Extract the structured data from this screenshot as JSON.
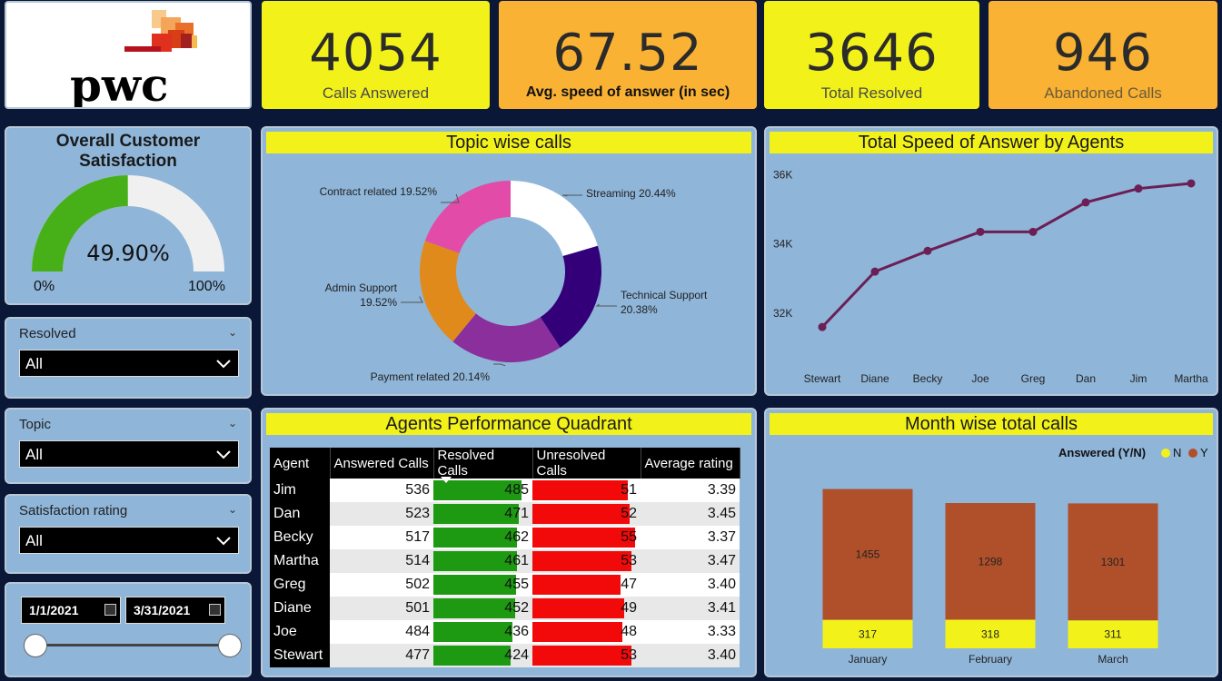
{
  "logo": {
    "text": "pwc"
  },
  "kpis": [
    {
      "value": "4054",
      "label": "Calls Answered",
      "color": "#f2f21a"
    },
    {
      "value": "67.52",
      "label": "Avg. speed of answer (in sec)",
      "color": "#f9b233"
    },
    {
      "value": "3646",
      "label": "Total Resolved",
      "color": "#f2f21a"
    },
    {
      "value": "946",
      "label": "Abandoned Calls",
      "color": "#f9b233"
    }
  ],
  "gauge": {
    "title_line1": "Overall Customer",
    "title_line2": "Satisfaction",
    "value_label": "49.90%",
    "value": 0.499,
    "min_label": "0%",
    "max_label": "100%",
    "fill_color": "#47b019",
    "track_color": "#f0f0f0"
  },
  "slicers": {
    "resolved": {
      "label": "Resolved",
      "value": "All"
    },
    "topic": {
      "label": "Topic",
      "value": "All"
    },
    "satisfaction": {
      "label": "Satisfaction rating",
      "value": "All"
    },
    "date": {
      "start": "1/1/2021",
      "end": "3/31/2021"
    }
  },
  "chart_data": [
    {
      "type": "pie",
      "title": "Topic wise calls",
      "donut": true,
      "slices": [
        {
          "label": "Streaming 20.44%",
          "name": "Streaming",
          "value": 20.44,
          "color": "#ffffff"
        },
        {
          "label": "Technical Support 20.38%",
          "name": "Technical Support",
          "value": 20.38,
          "color": "#33007a"
        },
        {
          "label": "Payment related 20.14%",
          "name": "Payment related",
          "value": 20.14,
          "color": "#8a2f9b"
        },
        {
          "label": "Admin Support 19.52%",
          "name": "Admin Support",
          "value": 19.52,
          "color": "#e08a1c"
        },
        {
          "label": "Contract related 19.52%",
          "name": "Contract related",
          "value": 19.52,
          "color": "#e24ba7"
        }
      ]
    },
    {
      "type": "line",
      "title": "Total Speed of Answer by Agents",
      "categories": [
        "Stewart",
        "Diane",
        "Becky",
        "Joe",
        "Greg",
        "Dan",
        "Jim",
        "Martha"
      ],
      "values": [
        31600,
        33200,
        33800,
        34350,
        34350,
        35200,
        35600,
        35750
      ],
      "ylim": [
        31000,
        36300
      ],
      "yticks": [
        32000,
        34000,
        36000
      ],
      "ytick_labels": [
        "32K",
        "34K",
        "36K"
      ],
      "color": "#6b1f55"
    },
    {
      "type": "bar",
      "title": "Month wise total calls",
      "legend_title": "Answered (Y/N)",
      "legend": [
        {
          "name": "N",
          "color": "#f2f21a"
        },
        {
          "name": "Y",
          "color": "#b0502a"
        }
      ],
      "categories": [
        "January",
        "February",
        "March"
      ],
      "series": [
        {
          "name": "N",
          "values": [
            317,
            318,
            311
          ],
          "labels": [
            "317",
            "318",
            "311"
          ],
          "color": "#f2f21a"
        },
        {
          "name": "Y",
          "values": [
            1455,
            1298,
            1301
          ],
          "labels": [
            "1455",
            "1298",
            "1301"
          ],
          "color": "#b0502a"
        }
      ],
      "ylim": [
        0,
        2000
      ]
    }
  ],
  "performance": {
    "title": "Agents Performance Quadrant",
    "headers": [
      "Agent",
      "Answered Calls",
      "Resolved Calls",
      "Unresolved Calls",
      "Average rating"
    ],
    "rows": [
      {
        "agent": "Jim",
        "answered": "536",
        "resolved": "485",
        "unresolved": "51",
        "rating": "3.39"
      },
      {
        "agent": "Dan",
        "answered": "523",
        "resolved": "471",
        "unresolved": "52",
        "rating": "3.45"
      },
      {
        "agent": "Becky",
        "answered": "517",
        "resolved": "462",
        "unresolved": "55",
        "rating": "3.37"
      },
      {
        "agent": "Martha",
        "answered": "514",
        "resolved": "461",
        "unresolved": "53",
        "rating": "3.47"
      },
      {
        "agent": "Greg",
        "answered": "502",
        "resolved": "455",
        "unresolved": "47",
        "rating": "3.40"
      },
      {
        "agent": "Diane",
        "answered": "501",
        "resolved": "452",
        "unresolved": "49",
        "rating": "3.41"
      },
      {
        "agent": "Joe",
        "answered": "484",
        "resolved": "436",
        "unresolved": "48",
        "rating": "3.33"
      },
      {
        "agent": "Stewart",
        "answered": "477",
        "resolved": "424",
        "unresolved": "53",
        "rating": "3.40"
      }
    ],
    "resolved_color": "#1e9a12",
    "unresolved_color": "#f20a0a"
  }
}
